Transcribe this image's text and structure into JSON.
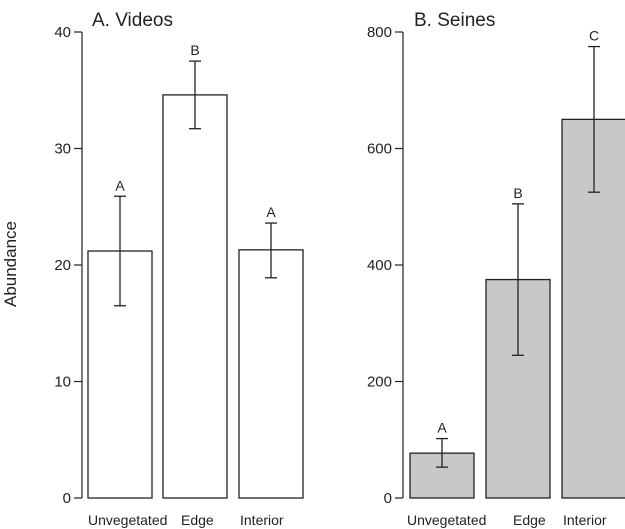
{
  "ylabel": "Abundance",
  "chart_data": [
    {
      "type": "bar",
      "title": "A.  Videos",
      "categories": [
        "Unvegetated",
        "Edge",
        "Interior"
      ],
      "values": [
        21.2,
        34.6,
        21.3
      ],
      "error_low": [
        16.5,
        31.7,
        18.9
      ],
      "error_high": [
        25.9,
        37.5,
        23.6
      ],
      "significance": [
        "A",
        "B",
        "A"
      ],
      "ylim": [
        0,
        40
      ],
      "yticks": [
        0,
        10,
        20,
        30,
        40
      ],
      "bar_color": "#ffffff",
      "edge_color": "#222222"
    },
    {
      "type": "bar",
      "title": "B.  Seines",
      "categories": [
        "Unvegetated",
        "Edge",
        "Interior"
      ],
      "values": [
        77,
        375,
        650
      ],
      "error_low": [
        53,
        245,
        525
      ],
      "error_high": [
        102,
        505,
        775
      ],
      "significance": [
        "A",
        "B",
        "C"
      ],
      "ylim": [
        0,
        800
      ],
      "yticks": [
        0,
        200,
        400,
        600,
        800
      ],
      "bar_color": "#c8c8c8",
      "edge_color": "#222222"
    }
  ]
}
